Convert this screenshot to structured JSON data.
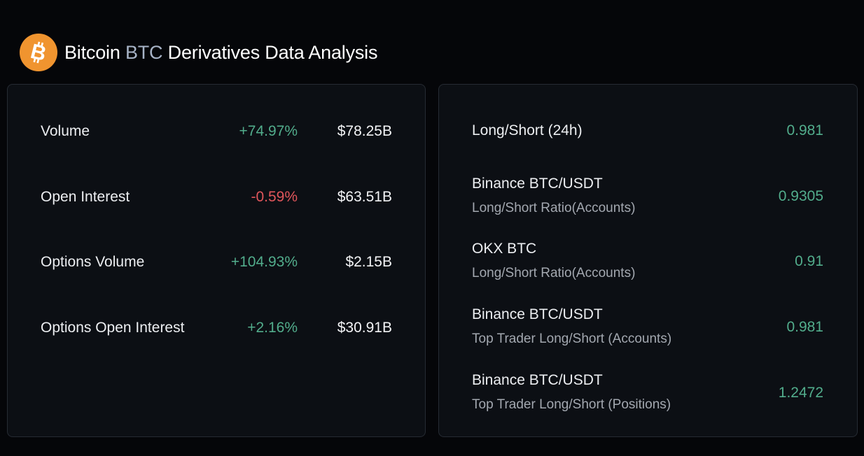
{
  "header": {
    "title_prefix": "Bitcoin ",
    "ticker": "BTC",
    "title_suffix": " Derivatives Data Analysis",
    "logo_icon": "bitcoin-icon",
    "logo_color": "#f0942f"
  },
  "left_metrics": [
    {
      "label": "Volume",
      "change": "+74.97%",
      "direction": "up",
      "value": "$78.25B"
    },
    {
      "label": "Open Interest",
      "change": "-0.59%",
      "direction": "down",
      "value": "$63.51B"
    },
    {
      "label": "Options Volume",
      "change": "+104.93%",
      "direction": "up",
      "value": "$2.15B"
    },
    {
      "label": "Options Open Interest",
      "change": "+2.16%",
      "direction": "up",
      "value": "$30.91B"
    }
  ],
  "right_metrics": [
    {
      "label": "Long/Short (24h)",
      "value": "0.981"
    },
    {
      "label": "Binance BTC/USDT",
      "sublabel": "Long/Short Ratio(Accounts)",
      "value": "0.9305"
    },
    {
      "label": "OKX BTC",
      "sublabel": "Long/Short Ratio(Accounts)",
      "value": "0.91"
    },
    {
      "label": "Binance BTC/USDT",
      "sublabel": "Top Trader Long/Short (Accounts)",
      "value": "0.981"
    },
    {
      "label": "Binance BTC/USDT",
      "sublabel": "Top Trader Long/Short (Positions)",
      "value": "1.2472"
    }
  ],
  "colors": {
    "positive": "#52ad8c",
    "negative": "#e0565b",
    "background": "#050609",
    "card": "#0c0f14"
  }
}
